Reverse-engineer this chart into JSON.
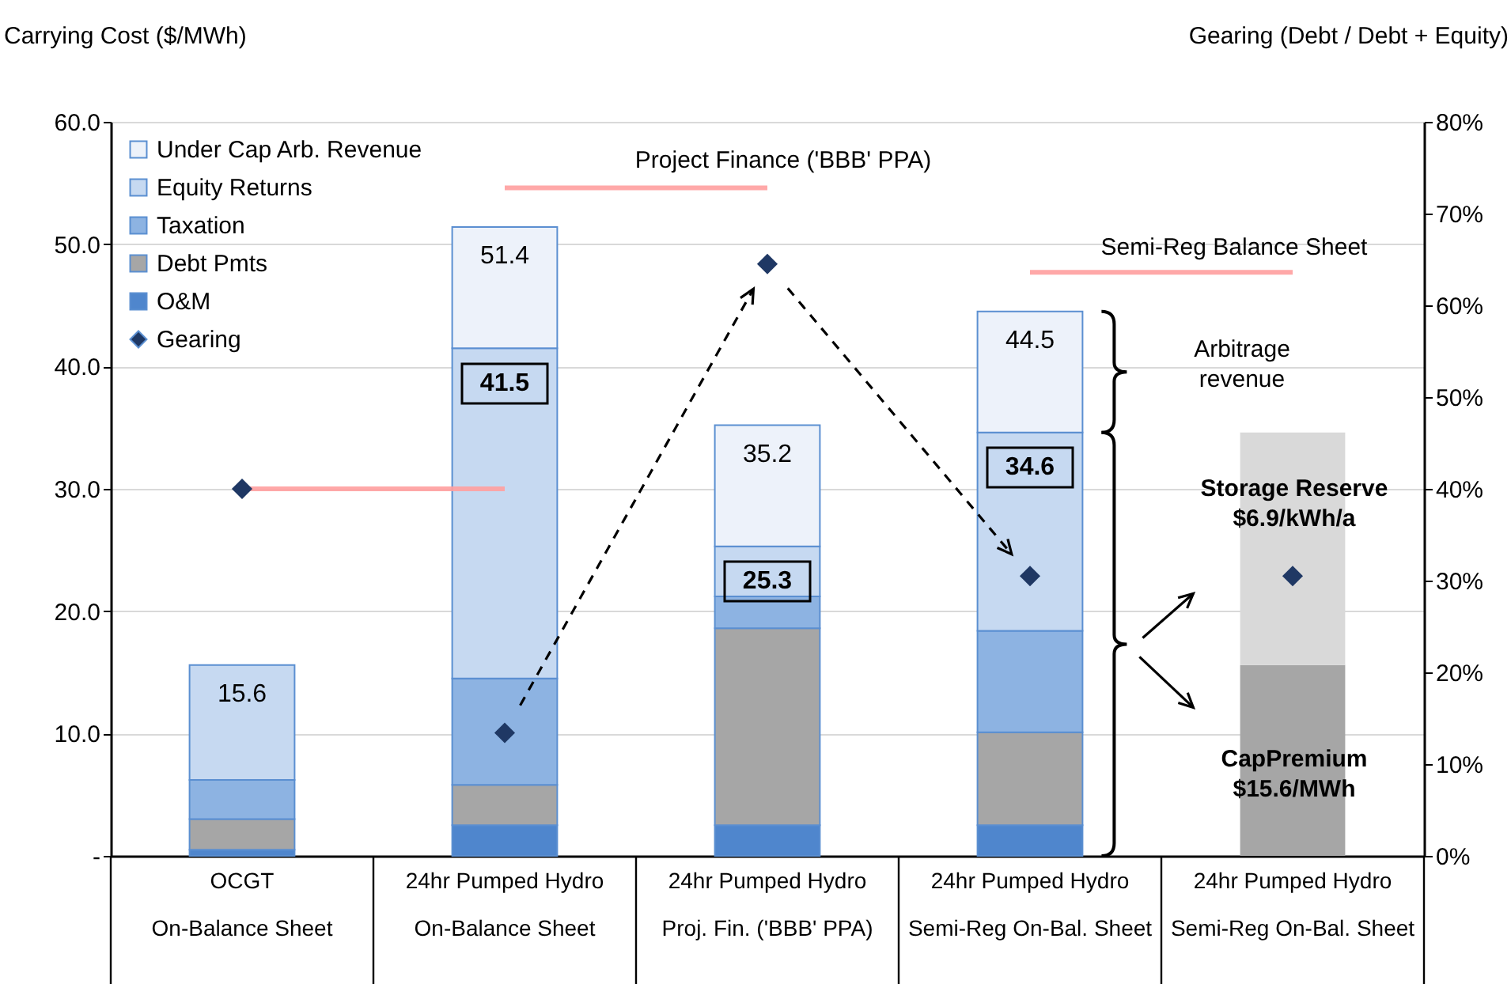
{
  "chart_data": {
    "type": "bar",
    "stacked": true,
    "ylabel": "Carrying Cost ($/MWh)",
    "y2label": "Gearing (Debt / Debt + Equity)",
    "categories": [
      "OCGT\nOn-Balance Sheet",
      "24hr Pumped Hydro\nOn-Balance Sheet",
      "24hr Pumped Hydro\nProj. Fin. ('BBB' PPA)",
      "24hr Pumped Hydro\nSemi-Reg On-Bal. Sheet",
      "24hr Pumped Hydro\nSemi-Reg On-Bal. Sheet"
    ],
    "ylim": [
      0,
      60
    ],
    "yticks": [
      {
        "value": 0,
        "label": "-"
      },
      {
        "value": 10,
        "label": "10.0"
      },
      {
        "value": 20,
        "label": "20.0"
      },
      {
        "value": 30,
        "label": "30.0"
      },
      {
        "value": 40,
        "label": "40.0"
      },
      {
        "value": 50,
        "label": "50.0"
      },
      {
        "value": 60,
        "label": "60.0"
      }
    ],
    "y2lim": [
      0,
      80
    ],
    "y2ticks": [
      {
        "value": 0,
        "label": "0%"
      },
      {
        "value": 10,
        "label": "10%"
      },
      {
        "value": 20,
        "label": "20%"
      },
      {
        "value": 30,
        "label": "30%"
      },
      {
        "value": 40,
        "label": "40%"
      },
      {
        "value": 50,
        "label": "50%"
      },
      {
        "value": 60,
        "label": "60%"
      },
      {
        "value": 70,
        "label": "70%"
      },
      {
        "value": 80,
        "label": "80%"
      }
    ],
    "grid": "y",
    "legend": "top left",
    "series": [
      {
        "name": "O&M",
        "color": "#4f86cd",
        "values": [
          0.5,
          2.5,
          2.5,
          2.5,
          null
        ]
      },
      {
        "name": "Debt Pmts",
        "color": "#a6a6a6",
        "values": [
          2.5,
          3.3,
          16.1,
          7.6,
          null
        ]
      },
      {
        "name": "Taxation",
        "color": "#8db3e2",
        "values": [
          3.2,
          8.7,
          2.6,
          8.3,
          null
        ]
      },
      {
        "name": "Equity Returns",
        "color": "#c6d9f1",
        "values": [
          9.4,
          27.0,
          4.1,
          16.2,
          null
        ]
      },
      {
        "name": "Under Cap Arb. Revenue",
        "color": "#edf2fa",
        "values": [
          null,
          9.9,
          9.9,
          9.9,
          null
        ]
      },
      {
        "color": "#a6a6a6",
        "values": [
          null,
          null,
          null,
          null,
          15.6
        ]
      },
      {
        "color": "#d9d9d9",
        "values": [
          null,
          null,
          null,
          null,
          19.0
        ]
      },
      {
        "type": "line",
        "axis": "y2",
        "color": "#ff9f9f",
        "values": [
          40,
          40,
          null,
          null,
          null
        ]
      },
      {
        "type": "line",
        "axis": "y2",
        "color": "#ff9f9f",
        "values": [
          null,
          72.8,
          72.8,
          null,
          null
        ]
      },
      {
        "type": "line",
        "axis": "y2",
        "color": "#ff9f9f",
        "values": [
          null,
          null,
          null,
          63.6,
          63.6
        ]
      },
      {
        "name": "Gearing",
        "type": "scatter",
        "axis": "y2",
        "marker": "diamond",
        "color": "#1f3864",
        "values": [
          40,
          13.4,
          64.5,
          30.5,
          30.5
        ]
      }
    ],
    "totals": [
      "15.6",
      "51.4",
      "35.2",
      "44.5",
      null
    ],
    "annotations": [
      "Project Finance ('BBB' PPA)",
      "Semi-Reg Balance Sheet",
      "Arbitrage\nrevenue",
      "Storage Reserve\n$6.9/kWh/a",
      "CapPremium\n$15.6/MWh",
      "41.5",
      "25.3",
      "34.6"
    ]
  }
}
